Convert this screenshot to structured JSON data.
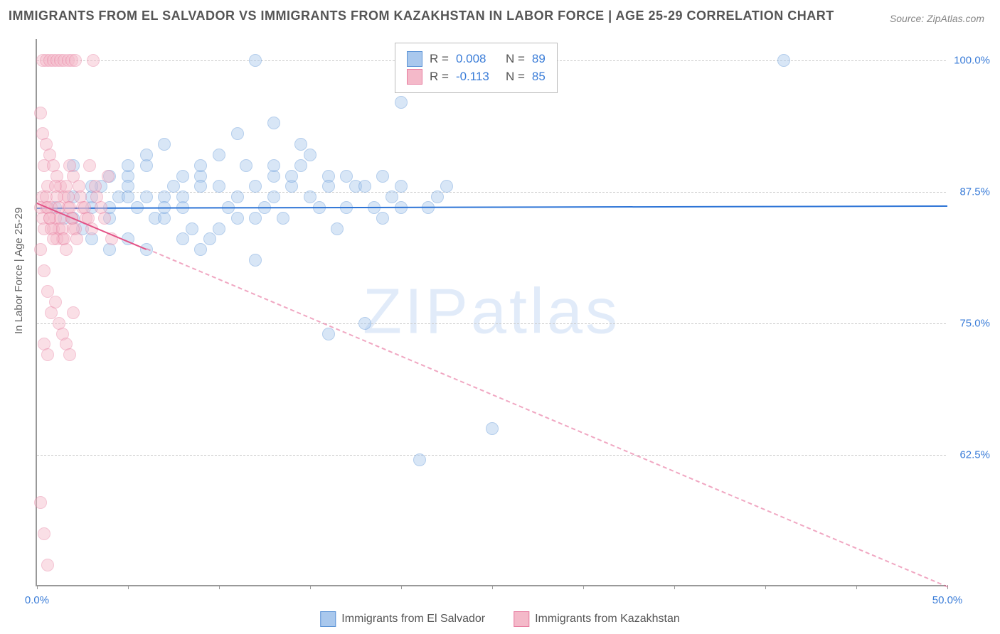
{
  "title": "IMMIGRANTS FROM EL SALVADOR VS IMMIGRANTS FROM KAZAKHSTAN IN LABOR FORCE | AGE 25-29 CORRELATION CHART",
  "source": "Source: ZipAtlas.com",
  "ylabel": "In Labor Force | Age 25-29",
  "watermark": "ZIPatlas",
  "chart": {
    "type": "scatter",
    "xlim": [
      0,
      50
    ],
    "ylim": [
      50,
      102
    ],
    "x_ticks": [
      0,
      5,
      10,
      15,
      20,
      25,
      30,
      35,
      40,
      45,
      50
    ],
    "x_tick_labels": {
      "0": "0.0%",
      "50": "50.0%"
    },
    "y_gridlines": [
      62.5,
      75,
      87.5,
      100
    ],
    "y_tick_labels": {
      "62.5": "62.5%",
      "75": "75.0%",
      "87.5": "87.5%",
      "100": "100.0%"
    },
    "background_color": "#ffffff",
    "grid_color": "#cccccc",
    "axis_color": "#999999",
    "tick_label_color": "#3b7dd8",
    "marker_radius": 9,
    "marker_opacity": 0.45,
    "series": [
      {
        "name": "Immigrants from El Salvador",
        "color_fill": "#a9c8ed",
        "color_stroke": "#5b93d6",
        "R": "0.008",
        "N": "89",
        "trend": {
          "y_start": 86.0,
          "y_end": 86.2,
          "solid_frac": 1.0,
          "color": "#2d74d6"
        },
        "points": [
          [
            1.0,
            86
          ],
          [
            1.5,
            85
          ],
          [
            2.0,
            87
          ],
          [
            2.5,
            84
          ],
          [
            3.0,
            86
          ],
          [
            3.5,
            88
          ],
          [
            4.0,
            85
          ],
          [
            4.5,
            87
          ],
          [
            5.0,
            89
          ],
          [
            5.5,
            86
          ],
          [
            6.0,
            90
          ],
          [
            6.5,
            85
          ],
          [
            7.0,
            87
          ],
          [
            7.5,
            88
          ],
          [
            8.0,
            86
          ],
          [
            8.5,
            84
          ],
          [
            9.0,
            89
          ],
          [
            9.5,
            83
          ],
          [
            10.0,
            91
          ],
          [
            10.5,
            86
          ],
          [
            11.0,
            93
          ],
          [
            11.5,
            90
          ],
          [
            12.0,
            88
          ],
          [
            12.5,
            86
          ],
          [
            13.0,
            89
          ],
          [
            12.0,
            81
          ],
          [
            13.5,
            85
          ],
          [
            14.0,
            88
          ],
          [
            14.5,
            90
          ],
          [
            15.0,
            87
          ],
          [
            15.5,
            86
          ],
          [
            16.0,
            89
          ],
          [
            16.5,
            84
          ],
          [
            17.0,
            86
          ],
          [
            17.5,
            88
          ],
          [
            18.0,
            75
          ],
          [
            18.5,
            86
          ],
          [
            19.0,
            89
          ],
          [
            19.5,
            87
          ],
          [
            20.0,
            88
          ],
          [
            20.0,
            96
          ],
          [
            21.0,
            62
          ],
          [
            21.5,
            86
          ],
          [
            22.0,
            87
          ],
          [
            22.5,
            88
          ],
          [
            25.0,
            65
          ],
          [
            3.0,
            83
          ],
          [
            4.0,
            82
          ],
          [
            5.0,
            83
          ],
          [
            6.0,
            82
          ],
          [
            7.0,
            85
          ],
          [
            8.0,
            83
          ],
          [
            9.0,
            82
          ],
          [
            10.0,
            84
          ],
          [
            11.0,
            85
          ],
          [
            12.0,
            100
          ],
          [
            13.0,
            87
          ],
          [
            13.0,
            90
          ],
          [
            14.0,
            89
          ],
          [
            15.0,
            91
          ],
          [
            16.0,
            88
          ],
          [
            14.5,
            92
          ],
          [
            13.0,
            94
          ],
          [
            17.0,
            89
          ],
          [
            18.0,
            88
          ],
          [
            19.0,
            85
          ],
          [
            20.0,
            86
          ],
          [
            41.0,
            100
          ],
          [
            16.0,
            74
          ],
          [
            5.0,
            90
          ],
          [
            6.0,
            91
          ],
          [
            7.0,
            92
          ],
          [
            8.0,
            89
          ],
          [
            9.0,
            90
          ],
          [
            10.0,
            88
          ],
          [
            11.0,
            87
          ],
          [
            12.0,
            85
          ],
          [
            2.0,
            85
          ],
          [
            3.0,
            87
          ],
          [
            4.0,
            86
          ],
          [
            5.0,
            88
          ],
          [
            6.0,
            87
          ],
          [
            7.0,
            86
          ],
          [
            8.0,
            87
          ],
          [
            9.0,
            88
          ],
          [
            2.0,
            90
          ],
          [
            3.0,
            88
          ],
          [
            4.0,
            89
          ],
          [
            5.0,
            87
          ]
        ]
      },
      {
        "name": "Immigrants from Kazakhstan",
        "color_fill": "#f4b9c9",
        "color_stroke": "#e77da0",
        "R": "-0.113",
        "N": "85",
        "trend": {
          "y_start": 86.5,
          "y_end": 50.0,
          "solid_frac": 0.12,
          "color": "#e35186"
        },
        "points": [
          [
            0.3,
            100
          ],
          [
            0.5,
            100
          ],
          [
            0.7,
            100
          ],
          [
            0.9,
            100
          ],
          [
            1.1,
            100
          ],
          [
            1.3,
            100
          ],
          [
            1.5,
            100
          ],
          [
            1.7,
            100
          ],
          [
            1.9,
            100
          ],
          [
            2.1,
            100
          ],
          [
            0.2,
            95
          ],
          [
            0.4,
            90
          ],
          [
            0.6,
            88
          ],
          [
            0.8,
            86
          ],
          [
            1.0,
            85
          ],
          [
            1.2,
            84
          ],
          [
            1.4,
            83
          ],
          [
            1.6,
            82
          ],
          [
            1.8,
            90
          ],
          [
            2.0,
            89
          ],
          [
            0.3,
            87
          ],
          [
            0.5,
            86
          ],
          [
            0.7,
            85
          ],
          [
            0.9,
            84
          ],
          [
            1.1,
            83
          ],
          [
            1.3,
            88
          ],
          [
            1.5,
            87
          ],
          [
            1.7,
            86
          ],
          [
            1.9,
            85
          ],
          [
            2.1,
            84
          ],
          [
            0.4,
            80
          ],
          [
            0.6,
            78
          ],
          [
            0.8,
            76
          ],
          [
            1.0,
            77
          ],
          [
            1.2,
            75
          ],
          [
            1.4,
            74
          ],
          [
            1.6,
            73
          ],
          [
            1.8,
            72
          ],
          [
            2.0,
            76
          ],
          [
            0.2,
            82
          ],
          [
            0.3,
            93
          ],
          [
            0.5,
            92
          ],
          [
            0.7,
            91
          ],
          [
            0.9,
            90
          ],
          [
            1.1,
            89
          ],
          [
            0.4,
            73
          ],
          [
            0.6,
            72
          ],
          [
            0.2,
            58
          ],
          [
            0.4,
            55
          ],
          [
            0.6,
            52
          ],
          [
            2.3,
            88
          ],
          [
            2.5,
            86
          ],
          [
            2.7,
            85
          ],
          [
            2.9,
            90
          ],
          [
            3.1,
            100
          ],
          [
            3.3,
            87
          ],
          [
            3.5,
            86
          ],
          [
            3.7,
            85
          ],
          [
            3.9,
            89
          ],
          [
            4.1,
            83
          ],
          [
            0.2,
            86
          ],
          [
            0.3,
            85
          ],
          [
            0.4,
            84
          ],
          [
            0.5,
            87
          ],
          [
            0.6,
            86
          ],
          [
            0.7,
            85
          ],
          [
            0.8,
            84
          ],
          [
            0.9,
            83
          ],
          [
            1.0,
            88
          ],
          [
            1.1,
            87
          ],
          [
            1.2,
            86
          ],
          [
            1.3,
            85
          ],
          [
            1.4,
            84
          ],
          [
            1.5,
            83
          ],
          [
            1.6,
            88
          ],
          [
            1.7,
            87
          ],
          [
            1.8,
            86
          ],
          [
            1.9,
            85
          ],
          [
            2.0,
            84
          ],
          [
            2.2,
            83
          ],
          [
            2.4,
            87
          ],
          [
            2.6,
            86
          ],
          [
            2.8,
            85
          ],
          [
            3.0,
            84
          ],
          [
            3.2,
            88
          ]
        ]
      }
    ]
  },
  "legend_stats_labels": {
    "R": "R =",
    "N": "N ="
  },
  "legend_bottom": [
    {
      "label": "Immigrants from El Salvador",
      "fill": "#a9c8ed",
      "stroke": "#5b93d6"
    },
    {
      "label": "Immigrants from Kazakhstan",
      "fill": "#f4b9c9",
      "stroke": "#e77da0"
    }
  ]
}
